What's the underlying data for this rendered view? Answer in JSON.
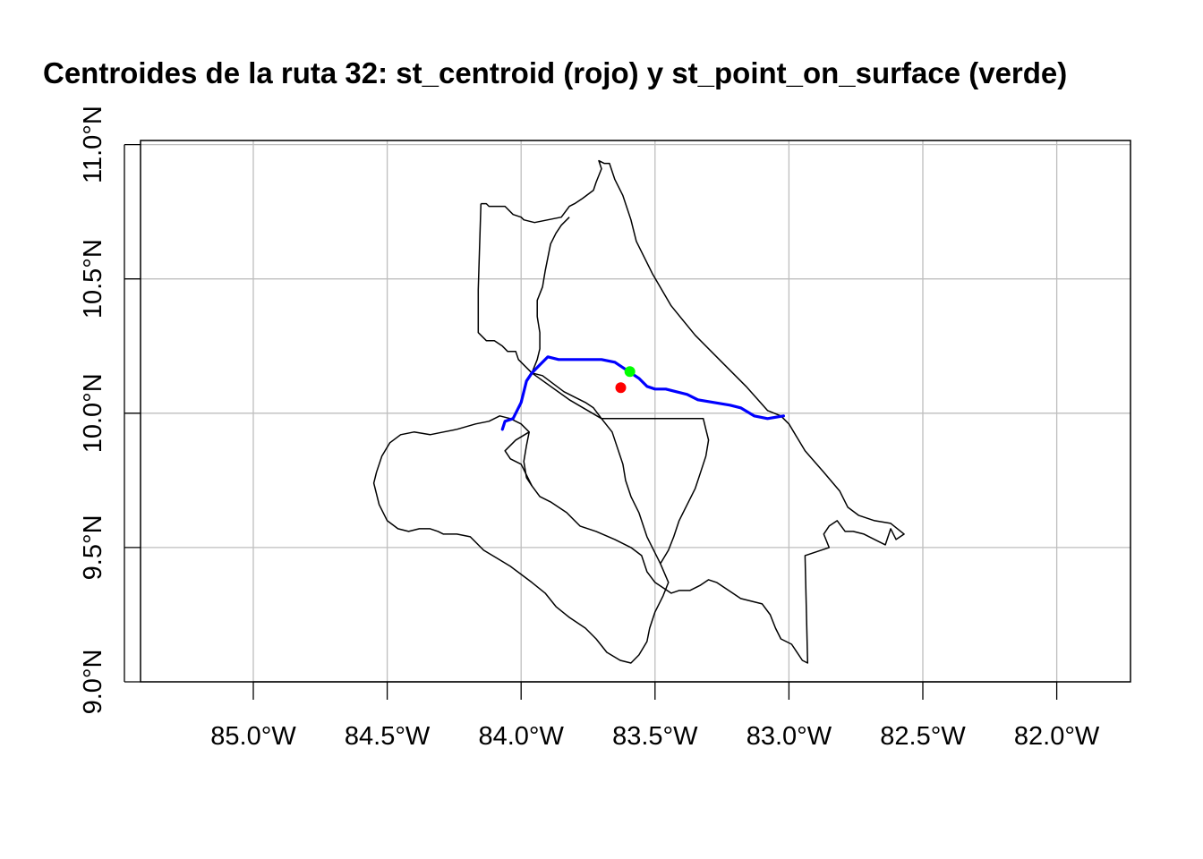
{
  "title": "Centroides de la ruta 32: st_centroid (rojo) y st_point_on_surface (verde)",
  "map": {
    "x_ticks": [
      {
        "value": -85.0,
        "label": "85.0°W"
      },
      {
        "value": -84.5,
        "label": "84.5°W"
      },
      {
        "value": -84.0,
        "label": "84.0°W"
      },
      {
        "value": -83.5,
        "label": "83.5°W"
      },
      {
        "value": -83.0,
        "label": "83.0°W"
      },
      {
        "value": -82.5,
        "label": "82.5°W"
      },
      {
        "value": -82.0,
        "label": "82.0°W"
      }
    ],
    "y_ticks": [
      {
        "value": 9.0,
        "label": "9.0°N"
      },
      {
        "value": 9.5,
        "label": "9.5°N"
      },
      {
        "value": 10.0,
        "label": "10.0°N"
      },
      {
        "value": 10.5,
        "label": "10.5°N"
      },
      {
        "value": 11.0,
        "label": "11.0°N"
      }
    ],
    "lon_range": [
      -85.43,
      -81.73
    ],
    "lat_range": [
      9.0,
      11.01
    ],
    "graticule": true,
    "colors": {
      "route": "#0000ff",
      "centroid": "#ff0000",
      "point_on_surface": "#00ff00",
      "boundary": "#000000",
      "grid": "#bebebe"
    },
    "route_32": [
      [
        -84.07,
        9.94
      ],
      [
        -84.06,
        9.97
      ],
      [
        -84.03,
        9.98
      ],
      [
        -84.01,
        10.02
      ],
      [
        -84.0,
        10.04
      ],
      [
        -83.99,
        10.08
      ],
      [
        -83.98,
        10.12
      ],
      [
        -83.96,
        10.15
      ],
      [
        -83.95,
        10.16
      ],
      [
        -83.93,
        10.18
      ],
      [
        -83.9,
        10.21
      ],
      [
        -83.86,
        10.2
      ],
      [
        -83.8,
        10.2
      ],
      [
        -83.75,
        10.2
      ],
      [
        -83.7,
        10.2
      ],
      [
        -83.65,
        10.19
      ],
      [
        -83.62,
        10.17
      ],
      [
        -83.59,
        10.15
      ],
      [
        -83.56,
        10.13
      ],
      [
        -83.53,
        10.1
      ],
      [
        -83.5,
        10.09
      ],
      [
        -83.46,
        10.09
      ],
      [
        -83.42,
        10.08
      ],
      [
        -83.38,
        10.07
      ],
      [
        -83.34,
        10.05
      ],
      [
        -83.28,
        10.04
      ],
      [
        -83.22,
        10.03
      ],
      [
        -83.18,
        10.02
      ],
      [
        -83.13,
        9.99
      ],
      [
        -83.08,
        9.98
      ],
      [
        -83.02,
        9.99
      ]
    ],
    "centroid": [
      -83.628,
      10.095
    ],
    "point_on_surface": [
      -83.594,
      10.155
    ],
    "boundaries": [
      [
        [
          -84.15,
          10.78
        ],
        [
          -84.13,
          10.78
        ],
        [
          -84.12,
          10.77
        ],
        [
          -84.08,
          10.77
        ],
        [
          -84.06,
          10.77
        ],
        [
          -84.03,
          10.74
        ],
        [
          -84.0,
          10.73
        ],
        [
          -83.99,
          10.72
        ],
        [
          -83.95,
          10.71
        ],
        [
          -83.9,
          10.72
        ],
        [
          -83.85,
          10.73
        ],
        [
          -83.82,
          10.77
        ],
        [
          -83.8,
          10.78
        ],
        [
          -83.77,
          10.8
        ],
        [
          -83.73,
          10.83
        ],
        [
          -83.72,
          10.86
        ],
        [
          -83.7,
          10.91
        ],
        [
          -83.71,
          10.94
        ],
        [
          -83.69,
          10.93
        ],
        [
          -83.67,
          10.93
        ],
        [
          -83.65,
          10.87
        ],
        [
          -83.62,
          10.81
        ],
        [
          -83.59,
          10.72
        ],
        [
          -83.57,
          10.64
        ],
        [
          -83.51,
          10.52
        ],
        [
          -83.44,
          10.4
        ],
        [
          -83.35,
          10.29
        ],
        [
          -83.25,
          10.19
        ],
        [
          -83.16,
          10.1
        ],
        [
          -83.08,
          10.01
        ],
        [
          -83.03,
          9.99
        ],
        [
          -83.0,
          9.96
        ],
        [
          -82.94,
          9.86
        ],
        [
          -82.87,
          9.78
        ],
        [
          -82.81,
          9.71
        ],
        [
          -82.78,
          9.65
        ],
        [
          -82.74,
          9.62
        ],
        [
          -82.68,
          9.6
        ],
        [
          -82.62,
          9.59
        ],
        [
          -82.57,
          9.55
        ],
        [
          -82.6,
          9.53
        ],
        [
          -82.62,
          9.57
        ],
        [
          -82.64,
          9.51
        ],
        [
          -82.68,
          9.53
        ],
        [
          -82.72,
          9.55
        ],
        [
          -82.76,
          9.56
        ],
        [
          -82.79,
          9.56
        ],
        [
          -82.82,
          9.6
        ],
        [
          -82.85,
          9.58
        ],
        [
          -82.87,
          9.55
        ],
        [
          -82.85,
          9.5
        ],
        [
          -82.94,
          9.47
        ],
        [
          -82.93,
          9.07
        ],
        [
          -82.95,
          9.08
        ],
        [
          -82.99,
          9.14
        ],
        [
          -83.03,
          9.16
        ],
        [
          -83.05,
          9.2
        ],
        [
          -83.07,
          9.25
        ],
        [
          -83.1,
          9.29
        ],
        [
          -83.14,
          9.3
        ],
        [
          -83.18,
          9.31
        ],
        [
          -83.21,
          9.33
        ],
        [
          -83.24,
          9.35
        ],
        [
          -83.27,
          9.37
        ],
        [
          -83.3,
          9.38
        ],
        [
          -83.33,
          9.36
        ],
        [
          -83.37,
          9.34
        ],
        [
          -83.41,
          9.34
        ],
        [
          -83.44,
          9.33
        ],
        [
          -83.47,
          9.35
        ],
        [
          -83.5,
          9.37
        ],
        [
          -83.53,
          9.41
        ],
        [
          -83.55,
          9.47
        ],
        [
          -83.59,
          9.5
        ],
        [
          -83.65,
          9.53
        ],
        [
          -83.72,
          9.56
        ],
        [
          -83.78,
          9.58
        ],
        [
          -83.83,
          9.63
        ],
        [
          -83.89,
          9.67
        ],
        [
          -83.93,
          9.69
        ],
        [
          -83.96,
          9.73
        ],
        [
          -83.98,
          9.77
        ],
        [
          -84.0,
          9.81
        ],
        [
          -84.04,
          9.83
        ],
        [
          -84.06,
          9.86
        ],
        [
          -84.02,
          9.9
        ],
        [
          -83.97,
          9.93
        ],
        [
          -84.0,
          9.96
        ],
        [
          -84.04,
          9.98
        ],
        [
          -84.08,
          9.99
        ],
        [
          -84.12,
          9.97
        ],
        [
          -84.17,
          9.96
        ],
        [
          -84.24,
          9.94
        ],
        [
          -84.29,
          9.93
        ],
        [
          -84.34,
          9.92
        ],
        [
          -84.4,
          9.93
        ],
        [
          -84.45,
          9.92
        ],
        [
          -84.49,
          9.89
        ],
        [
          -84.52,
          9.84
        ],
        [
          -84.54,
          9.78
        ],
        [
          -84.55,
          9.74
        ],
        [
          -84.53,
          9.66
        ],
        [
          -84.5,
          9.6
        ],
        [
          -84.46,
          9.57
        ],
        [
          -84.42,
          9.56
        ],
        [
          -84.38,
          9.57
        ],
        [
          -84.34,
          9.57
        ],
        [
          -84.31,
          9.56
        ],
        [
          -84.29,
          9.55
        ],
        [
          -84.24,
          9.55
        ],
        [
          -84.19,
          9.54
        ],
        [
          -84.14,
          9.49
        ],
        [
          -84.09,
          9.46
        ],
        [
          -84.04,
          9.43
        ],
        [
          -84.0,
          9.4
        ],
        [
          -83.96,
          9.37
        ],
        [
          -83.91,
          9.33
        ],
        [
          -83.87,
          9.28
        ],
        [
          -83.82,
          9.24
        ],
        [
          -83.76,
          9.2
        ],
        [
          -83.72,
          9.16
        ],
        [
          -83.68,
          9.11
        ],
        [
          -83.63,
          9.08
        ],
        [
          -83.59,
          9.07
        ],
        [
          -83.56,
          9.1
        ],
        [
          -83.53,
          9.15
        ],
        [
          -83.52,
          9.2
        ],
        [
          -83.5,
          9.26
        ],
        [
          -83.47,
          9.32
        ],
        [
          -83.45,
          9.37
        ],
        [
          -83.48,
          9.44
        ],
        [
          -83.53,
          9.54
        ],
        [
          -83.56,
          9.63
        ],
        [
          -83.59,
          9.69
        ],
        [
          -83.61,
          9.75
        ],
        [
          -83.62,
          9.81
        ],
        [
          -83.64,
          9.87
        ],
        [
          -83.66,
          9.93
        ],
        [
          -83.7,
          9.98
        ],
        [
          -83.6,
          9.98
        ],
        [
          -83.49,
          9.98
        ],
        [
          -83.4,
          9.98
        ],
        [
          -83.32,
          9.98
        ],
        [
          -83.55,
          9.98
        ],
        [
          -83.7,
          9.98
        ],
        [
          -83.82,
          10.05
        ],
        [
          -83.96,
          10.15
        ],
        [
          -84.01,
          10.2
        ],
        [
          -84.02,
          10.23
        ],
        [
          -84.05,
          10.23
        ],
        [
          -84.07,
          10.25
        ],
        [
          -84.1,
          10.27
        ],
        [
          -84.13,
          10.27
        ],
        [
          -84.16,
          10.3
        ],
        [
          -84.16,
          10.46
        ],
        [
          -84.15,
          10.78
        ]
      ],
      [
        [
          -83.96,
          10.15
        ],
        [
          -83.92,
          10.14
        ],
        [
          -83.88,
          10.11
        ],
        [
          -83.84,
          10.08
        ],
        [
          -83.8,
          10.06
        ],
        [
          -83.76,
          10.04
        ],
        [
          -83.73,
          10.02
        ],
        [
          -83.7,
          9.98
        ]
      ],
      [
        [
          -83.96,
          10.15
        ],
        [
          -83.94,
          10.2
        ],
        [
          -83.93,
          10.24
        ],
        [
          -83.93,
          10.3
        ],
        [
          -83.94,
          10.36
        ],
        [
          -83.94,
          10.42
        ],
        [
          -83.92,
          10.47
        ],
        [
          -83.91,
          10.53
        ],
        [
          -83.9,
          10.58
        ],
        [
          -83.89,
          10.63
        ],
        [
          -83.87,
          10.67
        ],
        [
          -83.85,
          10.7
        ],
        [
          -83.82,
          10.73
        ]
      ],
      [
        [
          -83.97,
          9.93
        ],
        [
          -83.98,
          9.88
        ],
        [
          -83.99,
          9.82
        ],
        [
          -83.98,
          9.76
        ],
        [
          -83.96,
          9.73
        ]
      ],
      [
        [
          -83.48,
          9.44
        ],
        [
          -83.45,
          9.49
        ],
        [
          -83.43,
          9.54
        ],
        [
          -83.41,
          9.6
        ],
        [
          -83.38,
          9.66
        ],
        [
          -83.35,
          9.72
        ],
        [
          -83.33,
          9.78
        ],
        [
          -83.31,
          9.84
        ],
        [
          -83.3,
          9.9
        ],
        [
          -83.31,
          9.94
        ],
        [
          -83.32,
          9.98
        ]
      ]
    ]
  }
}
